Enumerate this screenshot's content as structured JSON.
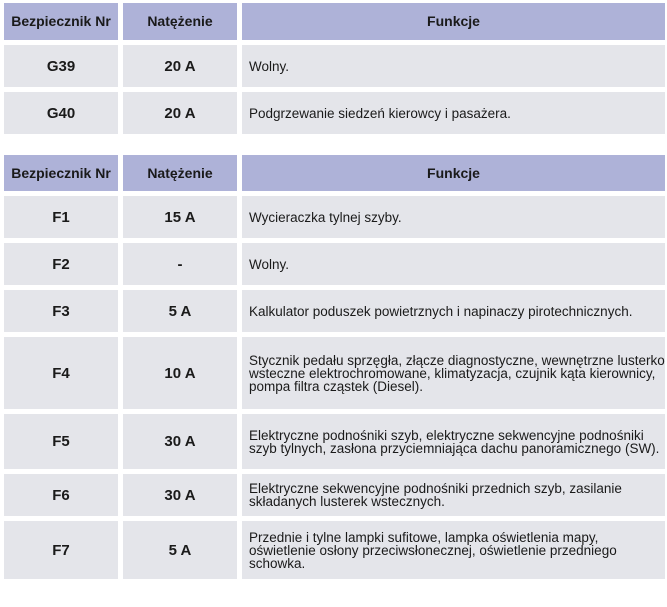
{
  "table1": {
    "headers": [
      "Bezpiecznik Nr",
      "Natężenie",
      "Funkcje"
    ],
    "rows": [
      {
        "fuse": "G39",
        "amp": "20 A",
        "func": "Wolny."
      },
      {
        "fuse": "G40",
        "amp": "20 A",
        "func": "Podgrzewanie siedzeń kierowcy i pasażera."
      }
    ]
  },
  "table2": {
    "headers": [
      "Bezpiecznik Nr",
      "Natężenie",
      "Funkcje"
    ],
    "rows": [
      {
        "fuse": "F1",
        "amp": "15 A",
        "func": "Wycieraczka tylnej szyby."
      },
      {
        "fuse": "F2",
        "amp": "-",
        "func": "Wolny."
      },
      {
        "fuse": "F3",
        "amp": "5 A",
        "func": "Kalkulator poduszek powietrznych i napinaczy pirotechnicznych."
      },
      {
        "fuse": "F4",
        "amp": "10 A",
        "func": "Stycznik pedału sprzęgła, złącze diagnostyczne, wewnętrzne lusterko wsteczne elektrochromowane, klimatyzacja, czujnik kąta kierownicy, pompa filtra cząstek (Diesel)."
      },
      {
        "fuse": "F5",
        "amp": "30 A",
        "func": "Elektryczne podnośniki szyb, elektryczne sekwencyjne podnośniki szyb tylnych, zasłona przyciemniająca dachu panoramicznego (SW)."
      },
      {
        "fuse": "F6",
        "amp": "30 A",
        "func": "Elektryczne sekwencyjne podnośniki przednich szyb, zasilanie składanych lusterek wstecznych."
      },
      {
        "fuse": "F7",
        "amp": "5 A",
        "func": "Przednie i tylne lampki sufitowe, lampka oświetlenia mapy, oświetlenie osłony przeciwsłonecznej, oświetlenie przedniego schowka."
      }
    ]
  }
}
